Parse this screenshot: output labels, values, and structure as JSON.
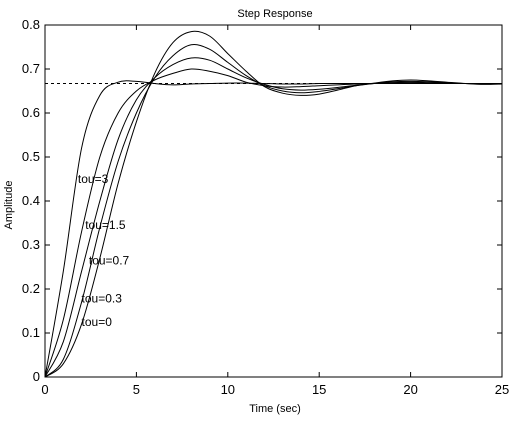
{
  "chart_data": {
    "type": "line",
    "title": "Step Response",
    "xlabel": "Time (sec)",
    "ylabel": "Amplitude",
    "xlim": [
      0,
      25
    ],
    "ylim": [
      0,
      0.8
    ],
    "x_ticks": [
      "0",
      "5",
      "10",
      "15",
      "20",
      "25"
    ],
    "y_ticks": [
      "0",
      "0.1",
      "0.2",
      "0.3",
      "0.4",
      "0.5",
      "0.6",
      "0.7",
      "0.8"
    ],
    "x_tick_values": [
      0,
      5,
      10,
      15,
      20,
      25
    ],
    "y_tick_values": [
      0,
      0.1,
      0.2,
      0.3,
      0.4,
      0.5,
      0.6,
      0.7,
      0.8
    ],
    "grid": false,
    "reference_line": {
      "y": 0.667,
      "style": "dashed"
    },
    "series": [
      {
        "name": "tou=3",
        "x": [
          0,
          1,
          2,
          3,
          4,
          5,
          6,
          7,
          8,
          9,
          10,
          11,
          12,
          13,
          14,
          15,
          16,
          17,
          18,
          19,
          20,
          21,
          22,
          23,
          24,
          25
        ],
        "y": [
          0,
          0.24,
          0.52,
          0.64,
          0.67,
          0.672,
          0.667,
          0.664,
          0.666,
          0.667,
          0.668,
          0.668,
          0.667,
          0.666,
          0.666,
          0.667,
          0.667,
          0.667,
          0.667,
          0.667,
          0.667,
          0.667,
          0.667,
          0.667,
          0.667,
          0.667
        ]
      },
      {
        "name": "tou=1.5",
        "x": [
          0,
          1,
          2,
          3,
          4,
          5,
          6,
          7,
          8,
          9,
          10,
          11,
          12,
          13,
          14,
          15,
          16,
          17,
          18,
          19,
          20,
          21,
          22,
          23,
          24,
          25
        ],
        "y": [
          0,
          0.13,
          0.33,
          0.5,
          0.6,
          0.65,
          0.675,
          0.69,
          0.7,
          0.695,
          0.685,
          0.67,
          0.662,
          0.659,
          0.66,
          0.662,
          0.664,
          0.666,
          0.667,
          0.668,
          0.668,
          0.668,
          0.667,
          0.667,
          0.667,
          0.667
        ]
      },
      {
        "name": "tou=0.7",
        "x": [
          0,
          1,
          2,
          3,
          4,
          5,
          6,
          7,
          8,
          9,
          10,
          11,
          12,
          13,
          14,
          15,
          16,
          17,
          18,
          19,
          20,
          21,
          22,
          23,
          24,
          25
        ],
        "y": [
          0,
          0.08,
          0.24,
          0.4,
          0.54,
          0.63,
          0.68,
          0.71,
          0.725,
          0.72,
          0.7,
          0.68,
          0.665,
          0.655,
          0.652,
          0.654,
          0.658,
          0.663,
          0.667,
          0.669,
          0.67,
          0.669,
          0.668,
          0.667,
          0.667,
          0.667
        ]
      },
      {
        "name": "tou=0.3",
        "x": [
          0,
          1,
          2,
          3,
          4,
          5,
          6,
          7,
          8,
          9,
          10,
          11,
          12,
          13,
          14,
          15,
          16,
          17,
          18,
          19,
          20,
          21,
          22,
          23,
          24,
          25
        ],
        "y": [
          0,
          0.04,
          0.17,
          0.34,
          0.49,
          0.6,
          0.68,
          0.73,
          0.755,
          0.745,
          0.715,
          0.685,
          0.662,
          0.65,
          0.646,
          0.649,
          0.655,
          0.662,
          0.667,
          0.671,
          0.672,
          0.671,
          0.669,
          0.667,
          0.666,
          0.666
        ]
      },
      {
        "name": "tou=0",
        "x": [
          0,
          1,
          2,
          3,
          4,
          5,
          6,
          7,
          8,
          9,
          10,
          11,
          12,
          13,
          14,
          15,
          16,
          17,
          18,
          19,
          20,
          21,
          22,
          23,
          24,
          25
        ],
        "y": [
          0,
          0.03,
          0.12,
          0.27,
          0.44,
          0.58,
          0.69,
          0.76,
          0.785,
          0.775,
          0.735,
          0.695,
          0.66,
          0.645,
          0.64,
          0.643,
          0.652,
          0.662,
          0.668,
          0.673,
          0.675,
          0.673,
          0.67,
          0.667,
          0.665,
          0.666
        ]
      }
    ],
    "annotations": [
      {
        "text": "tou=3",
        "x": 1.8,
        "y": 0.45
      },
      {
        "text": "tou=1.5",
        "x": 2.2,
        "y": 0.345
      },
      {
        "text": "tou=0.7",
        "x": 2.4,
        "y": 0.265
      },
      {
        "text": "tou=0.3",
        "x": 2.0,
        "y": 0.178
      },
      {
        "text": "tou=0",
        "x": 2.0,
        "y": 0.125
      }
    ]
  }
}
